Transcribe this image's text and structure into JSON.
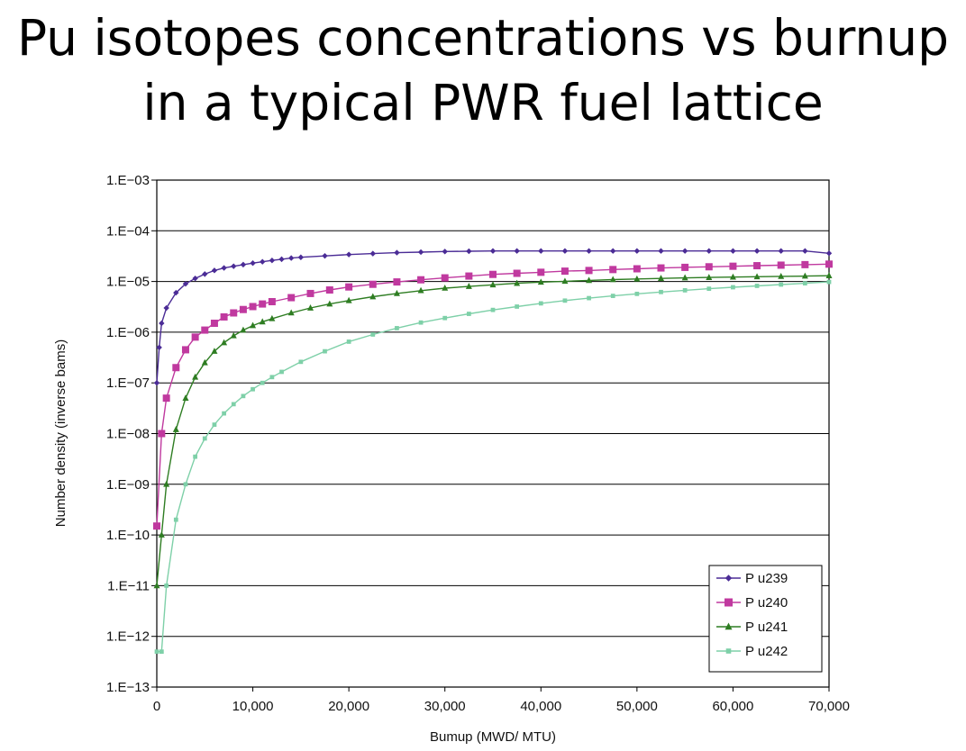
{
  "title": {
    "line1": "Pu isotopes concentrations vs burnup",
    "line2": "in a typical PWR fuel lattice"
  },
  "chart_data": {
    "type": "line",
    "xlabel": "Bumup (MWD/ MTU)",
    "ylabel": "Number density (inverse bams)",
    "xlim": [
      0,
      70000
    ],
    "ylim": [
      1e-13,
      0.001
    ],
    "yscale": "log",
    "grid": "horizontal",
    "legend_position": "bottom-right",
    "x_ticks": [
      0,
      10000,
      20000,
      30000,
      40000,
      50000,
      60000,
      70000
    ],
    "x_tick_labels": [
      "0",
      "10,000",
      "20,000",
      "30,000",
      "40,000",
      "50,000",
      "60,000",
      "70,000"
    ],
    "y_ticks": [
      0.001,
      0.0001,
      1e-05,
      1e-06,
      1e-07,
      1e-08,
      1e-09,
      1e-10,
      1e-11,
      1e-12,
      1e-13
    ],
    "y_tick_labels": [
      "1.E−03",
      "1.E−04",
      "1.E−05",
      "1.E−06",
      "1.E−07",
      "1.E−08",
      "1.E−09",
      "1.E−10",
      "1.E−11",
      "1.E−12",
      "1.E−13"
    ],
    "series": [
      {
        "name": "P u239",
        "color": "#4b2c96",
        "marker": "diamond",
        "x": [
          0,
          250,
          500,
          1000,
          2000,
          3000,
          4000,
          5000,
          6000,
          7000,
          8000,
          9000,
          10000,
          11000,
          12000,
          13000,
          14000,
          15000,
          17500,
          20000,
          22500,
          25000,
          27500,
          30000,
          32500,
          35000,
          37500,
          40000,
          42500,
          45000,
          47500,
          50000,
          52500,
          55000,
          57500,
          60000,
          62500,
          65000,
          67500,
          70000
        ],
        "y": [
          1e-07,
          5e-07,
          1.5e-06,
          3e-06,
          6e-06,
          9e-06,
          1.15e-05,
          1.4e-05,
          1.65e-05,
          1.85e-05,
          2e-05,
          2.15e-05,
          2.3e-05,
          2.45e-05,
          2.6e-05,
          2.75e-05,
          2.9e-05,
          3e-05,
          3.2e-05,
          3.4e-05,
          3.55e-05,
          3.7e-05,
          3.8e-05,
          3.9e-05,
          3.95e-05,
          4e-05,
          4e-05,
          4e-05,
          4e-05,
          4e-05,
          4e-05,
          4e-05,
          4e-05,
          4e-05,
          4e-05,
          4e-05,
          4e-05,
          4e-05,
          4e-05,
          3.6e-05
        ]
      },
      {
        "name": "P u240",
        "color": "#c0399f",
        "marker": "square",
        "x": [
          0,
          500,
          1000,
          2000,
          3000,
          4000,
          5000,
          6000,
          7000,
          8000,
          9000,
          10000,
          11000,
          12000,
          14000,
          16000,
          18000,
          20000,
          22500,
          25000,
          27500,
          30000,
          32500,
          35000,
          37500,
          40000,
          42500,
          45000,
          47500,
          50000,
          52500,
          55000,
          57500,
          60000,
          62500,
          65000,
          67500,
          70000
        ],
        "y": [
          1.5e-10,
          1e-08,
          5e-08,
          2e-07,
          4.5e-07,
          8e-07,
          1.1e-06,
          1.5e-06,
          2e-06,
          2.4e-06,
          2.8e-06,
          3.2e-06,
          3.6e-06,
          4e-06,
          4.8e-06,
          5.8e-06,
          6.8e-06,
          7.8e-06,
          8.8e-06,
          9.8e-06,
          1.08e-05,
          1.18e-05,
          1.28e-05,
          1.38e-05,
          1.45e-05,
          1.52e-05,
          1.6e-05,
          1.65e-05,
          1.72e-05,
          1.78e-05,
          1.85e-05,
          1.9e-05,
          1.95e-05,
          2e-05,
          2.05e-05,
          2.1e-05,
          2.15e-05,
          2.2e-05
        ]
      },
      {
        "name": "P u241",
        "color": "#2e7d22",
        "marker": "triangle",
        "x": [
          0,
          500,
          1000,
          2000,
          3000,
          4000,
          5000,
          6000,
          7000,
          8000,
          9000,
          10000,
          11000,
          12000,
          14000,
          16000,
          18000,
          20000,
          22500,
          25000,
          27500,
          30000,
          32500,
          35000,
          37500,
          40000,
          42500,
          45000,
          47500,
          50000,
          52500,
          55000,
          57500,
          60000,
          62500,
          65000,
          67500,
          70000
        ],
        "y": [
          1e-11,
          1e-10,
          1e-09,
          1.2e-08,
          5e-08,
          1.3e-07,
          2.5e-07,
          4.2e-07,
          6.2e-07,
          8.5e-07,
          1.1e-06,
          1.35e-06,
          1.6e-06,
          1.85e-06,
          2.4e-06,
          3e-06,
          3.6e-06,
          4.2e-06,
          5e-06,
          5.8e-06,
          6.6e-06,
          7.4e-06,
          8e-06,
          8.6e-06,
          9.2e-06,
          9.7e-06,
          1.01e-05,
          1.05e-05,
          1.09e-05,
          1.12e-05,
          1.15e-05,
          1.18e-05,
          1.2e-05,
          1.22e-05,
          1.24e-05,
          1.26e-05,
          1.28e-05,
          1.3e-05
        ]
      },
      {
        "name": "P u242",
        "color": "#7ed0a8",
        "marker": "circle",
        "x": [
          0,
          500,
          1000,
          2000,
          3000,
          4000,
          5000,
          6000,
          7000,
          8000,
          9000,
          10000,
          11000,
          12000,
          13000,
          15000,
          17500,
          20000,
          22500,
          25000,
          27500,
          30000,
          32500,
          35000,
          37500,
          40000,
          42500,
          45000,
          47500,
          50000,
          52500,
          55000,
          57500,
          60000,
          62500,
          65000,
          67500,
          70000
        ],
        "y": [
          5e-13,
          5e-13,
          1e-11,
          2e-10,
          1e-09,
          3.5e-09,
          8e-09,
          1.5e-08,
          2.5e-08,
          3.8e-08,
          5.5e-08,
          7.5e-08,
          1e-07,
          1.3e-07,
          1.65e-07,
          2.6e-07,
          4.2e-07,
          6.5e-07,
          9e-07,
          1.2e-06,
          1.55e-06,
          1.9e-06,
          2.3e-06,
          2.75e-06,
          3.2e-06,
          3.7e-06,
          4.2e-06,
          4.7e-06,
          5.2e-06,
          5.7e-06,
          6.2e-06,
          6.7e-06,
          7.2e-06,
          7.7e-06,
          8.2e-06,
          8.7e-06,
          9.2e-06,
          9.8e-06
        ]
      }
    ]
  }
}
